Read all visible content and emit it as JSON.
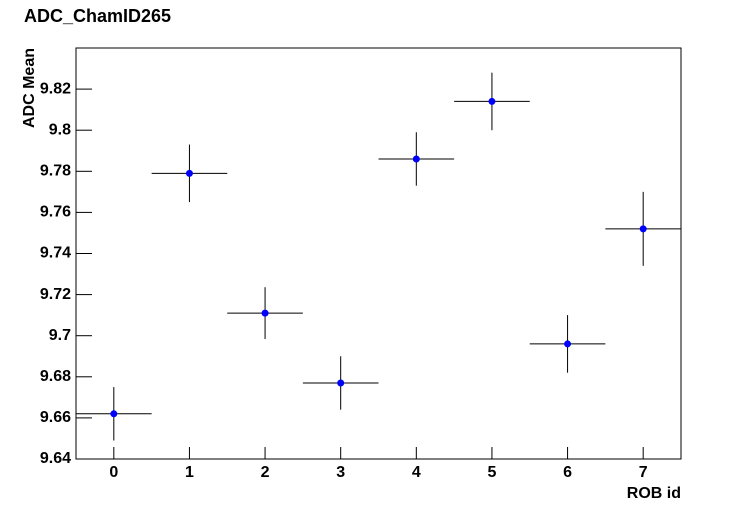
{
  "chart_data": {
    "type": "scatter",
    "title": "ADC_ChamID265",
    "xlabel": "ROB id",
    "ylabel": "ADC Mean",
    "x": [
      0,
      1,
      2,
      3,
      4,
      5,
      6,
      7
    ],
    "values": [
      9.662,
      9.779,
      9.711,
      9.677,
      9.786,
      9.814,
      9.696,
      9.752
    ],
    "yerr": [
      0.013,
      0.014,
      0.0126,
      0.013,
      0.013,
      0.014,
      0.014,
      0.018
    ],
    "xerr": [
      0.5,
      0.5,
      0.5,
      0.5,
      0.5,
      0.5,
      0.5,
      0.5
    ],
    "color": "#0000ff",
    "xlim": [
      -0.5,
      7.5
    ],
    "xticks": [
      0,
      1,
      2,
      3,
      4,
      5,
      6,
      7
    ],
    "ylim": [
      9.64,
      9.84
    ],
    "yticks": [
      9.64,
      9.66,
      9.68,
      9.7,
      9.72,
      9.74,
      9.76,
      9.78,
      9.8,
      9.82
    ]
  }
}
